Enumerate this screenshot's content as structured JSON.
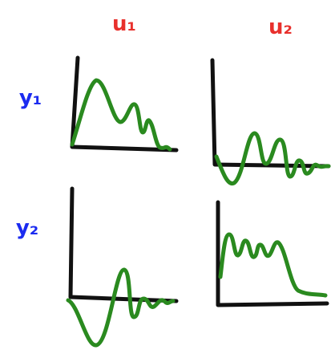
{
  "columns": [
    "u₁",
    "u₂"
  ],
  "rows": [
    "y₁",
    "y₂"
  ]
}
